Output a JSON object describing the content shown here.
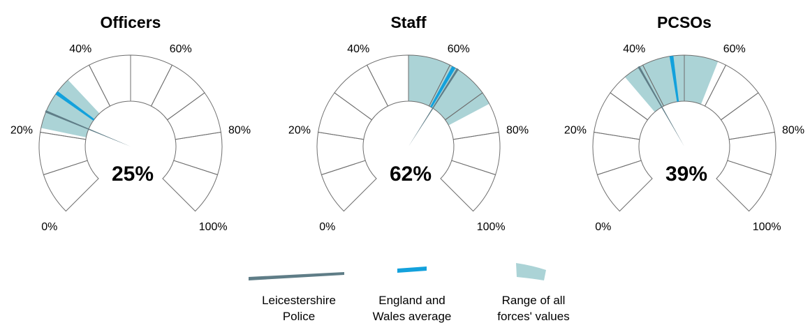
{
  "chart_data": [
    {
      "type": "gauge",
      "title": "Officers",
      "value": 25,
      "value_label": "25%",
      "england_wales_average": 30,
      "range": [
        21,
        34
      ],
      "ticks": [
        {
          "value": 0,
          "label": "0%"
        },
        {
          "value": 20,
          "label": "20%"
        },
        {
          "value": 40,
          "label": "40%"
        },
        {
          "value": 60,
          "label": "60%"
        },
        {
          "value": 80,
          "label": "80%"
        },
        {
          "value": 100,
          "label": "100%"
        }
      ]
    },
    {
      "type": "gauge",
      "title": "Staff",
      "value": 62,
      "value_label": "62%",
      "england_wales_average": 61,
      "range": [
        50,
        73
      ],
      "ticks": [
        {
          "value": 0,
          "label": "0%"
        },
        {
          "value": 20,
          "label": "20%"
        },
        {
          "value": 40,
          "label": "40%"
        },
        {
          "value": 60,
          "label": "60%"
        },
        {
          "value": 80,
          "label": "80%"
        },
        {
          "value": 100,
          "label": "100%"
        }
      ]
    },
    {
      "type": "gauge",
      "title": "PCSOs",
      "value": 39,
      "value_label": "39%",
      "england_wales_average": 47,
      "range": [
        35,
        58
      ],
      "ticks": [
        {
          "value": 0,
          "label": "0%"
        },
        {
          "value": 20,
          "label": "20%"
        },
        {
          "value": 40,
          "label": "40%"
        },
        {
          "value": 60,
          "label": "60%"
        },
        {
          "value": 80,
          "label": "80%"
        },
        {
          "value": 100,
          "label": "100%"
        }
      ]
    }
  ],
  "legend": [
    {
      "key": "force",
      "line1": "Leicestershire",
      "line2": "Police",
      "color": "#5f7d87"
    },
    {
      "key": "average",
      "line1": "England and",
      "line2": "Wales average",
      "color": "#13a1dc"
    },
    {
      "key": "range",
      "line1": "Range of all",
      "line2": "forces' values",
      "color": "#abd3d6"
    }
  ],
  "colors": {
    "force": "#5f7d87",
    "average": "#13a1dc",
    "range": "#abd3d6",
    "outline": "#6e6e6e"
  }
}
